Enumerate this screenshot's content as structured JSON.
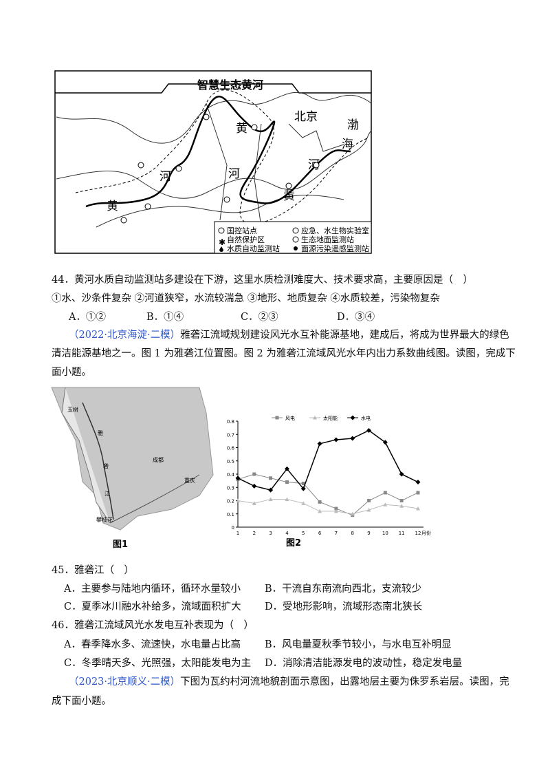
{
  "figure1": {
    "title": "智慧生态黄河",
    "places": [
      "北京",
      "渤",
      "海",
      "黄",
      "河",
      "河",
      "黄",
      "河",
      "黄"
    ],
    "legend": [
      "国控站点",
      "自然保护区",
      "水质自动监测站",
      "应急、水生物实验室",
      "生态地面监测站",
      "面源污染遥感监测站"
    ]
  },
  "q44": {
    "stem": "44．黄河水质自动监测站多建设在下游，这里水质检测难度大、技术要求高，主要原因是（　）",
    "statements": "①水、沙条件复杂 ②河道狭窄，水流较湍急 ③地形、地质复杂 ④水质较差，污染物复杂",
    "options": [
      "A．①②",
      "B．①④",
      "C．②③",
      "D．③④"
    ]
  },
  "intro1": {
    "source": "（2022·北京海淀·二模）",
    "lines": [
      "雅砻江流域规划建设风光水互补能源基地，建成后，将成为世界最大的绿色",
      "清洁能源基地之一。图 1 为雅砻江位置图。图 2 为雅砻江流域风光水年内出力系数曲线图。读图，完成下",
      "面小题。"
    ]
  },
  "figure2": {
    "places": [
      "玉树",
      "雅",
      "砻",
      "江",
      "成都",
      "重庆",
      "攀枝花"
    ],
    "caption": "图1"
  },
  "figure3": {
    "caption": "图2",
    "type": "line",
    "categories": [
      "1",
      "2",
      "3",
      "4",
      "5",
      "6",
      "7",
      "8",
      "9",
      "10",
      "11",
      "12"
    ],
    "x_label": "月份",
    "ylim": [
      0,
      0.8
    ],
    "yticks": [
      0,
      0.1,
      0.2,
      0.3,
      0.4,
      0.5,
      0.6,
      0.7,
      0.8
    ],
    "series": [
      {
        "name": "风电",
        "color": "#888888",
        "marker": "square",
        "values": [
          0.36,
          0.4,
          0.37,
          0.34,
          0.33,
          0.19,
          0.14,
          0.09,
          0.2,
          0.26,
          0.2,
          0.26
        ]
      },
      {
        "name": "太阳能",
        "color": "#bbbbbb",
        "marker": "triangle",
        "values": [
          0.2,
          0.18,
          0.21,
          0.21,
          0.18,
          0.12,
          0.12,
          0.1,
          0.13,
          0.17,
          0.16,
          0.14
        ]
      },
      {
        "name": "水电",
        "color": "#000000",
        "marker": "diamond",
        "values": [
          0.37,
          0.31,
          0.28,
          0.44,
          0.29,
          0.63,
          0.66,
          0.67,
          0.73,
          0.64,
          0.4,
          0.34
        ]
      }
    ]
  },
  "q45": {
    "stem": "45．雅砻江（　）",
    "options": [
      "A．主要参与陆地内循环，循环水量较小",
      "B．干流自东南流向西北，支流较少",
      "C．夏季冰川融水补给多，流域面积扩大",
      "D．受地形影响，流域形态南北狭长"
    ]
  },
  "q46": {
    "stem": "46．雅砻江流域风光水发电互补表现为（　）",
    "options": [
      "A．春季降水多、流速快，水电量占比高",
      "B．风电量夏秋季节较小，与水电互补明显",
      "C．冬季晴天多、光照强，太阳能发电为主",
      "D．消除清洁能源发电的波动性，稳定发电量"
    ]
  },
  "intro2": {
    "source": "（2023·北京顺义·二模）",
    "lines": [
      "下图为瓦约村河流地貌剖面示意图，出露地层主要为侏罗系岩层。读图，完",
      "成下面小题。"
    ]
  }
}
